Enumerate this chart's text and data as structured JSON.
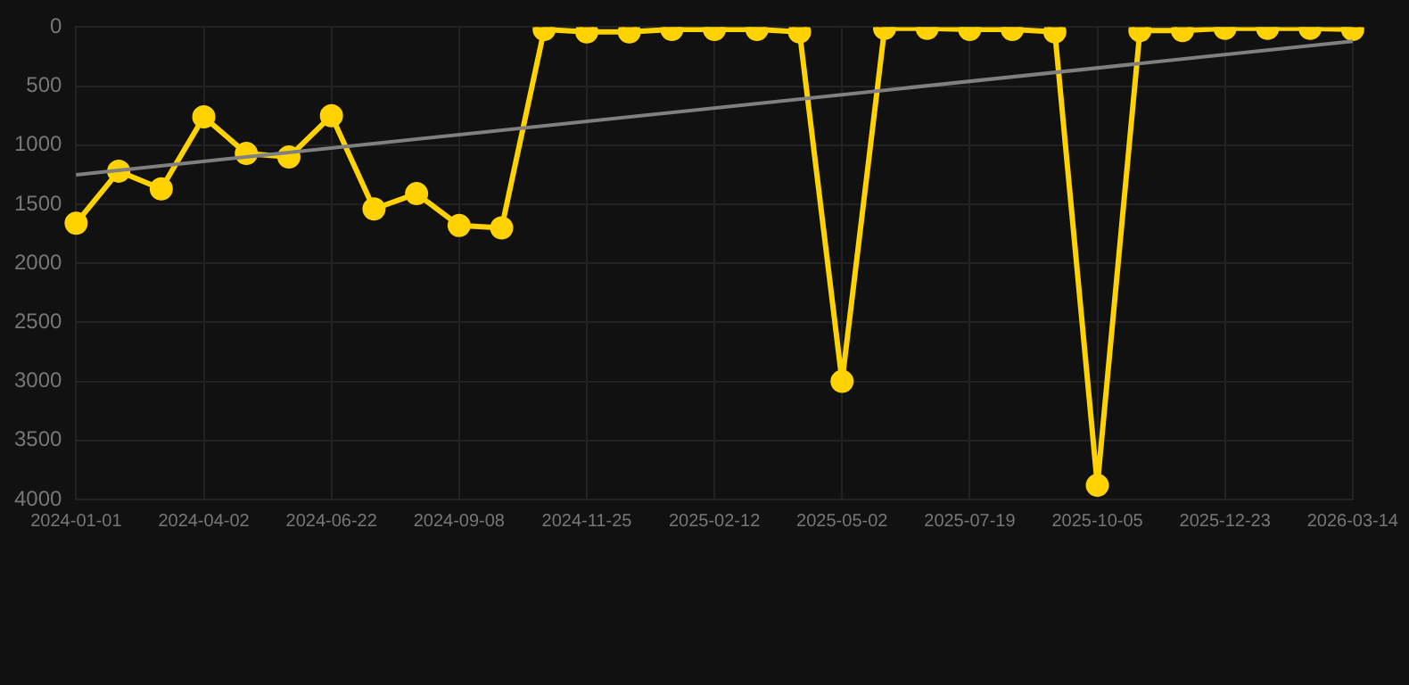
{
  "chart_data": {
    "type": "line",
    "categories": [
      "2024-01-01",
      null,
      null,
      "2024-04-02",
      null,
      null,
      "2024-06-22",
      null,
      null,
      "2024-09-08",
      null,
      null,
      "2024-11-25",
      null,
      null,
      "2025-02-12",
      null,
      null,
      "2025-05-02",
      null,
      null,
      "2025-07-19",
      null,
      null,
      "2025-10-05",
      null,
      null,
      "2025-12-23",
      null,
      null,
      "2026-03-14"
    ],
    "series": [
      {
        "color": "#ffd200",
        "values": [
          1660,
          1220,
          1370,
          760,
          1070,
          1100,
          750,
          1540,
          1410,
          1680,
          1700,
          20,
          40,
          40,
          20,
          20,
          20,
          40,
          3000,
          10,
          10,
          20,
          20,
          40,
          3880,
          30,
          30,
          10,
          10,
          10,
          20
        ]
      },
      {
        "color": "#808080",
        "marker": "none",
        "values": [
          1250,
          null,
          null,
          null,
          null,
          null,
          null,
          null,
          null,
          null,
          null,
          null,
          null,
          null,
          null,
          null,
          null,
          null,
          null,
          null,
          null,
          null,
          null,
          null,
          null,
          null,
          null,
          null,
          null,
          null,
          120
        ]
      }
    ],
    "ylim": [
      4000,
      0
    ],
    "yticks": [
      0,
      500,
      1000,
      1500,
      2000,
      2500,
      3000,
      3500,
      4000
    ],
    "grid": true,
    "marker": "circle",
    "line_style": "solid"
  }
}
